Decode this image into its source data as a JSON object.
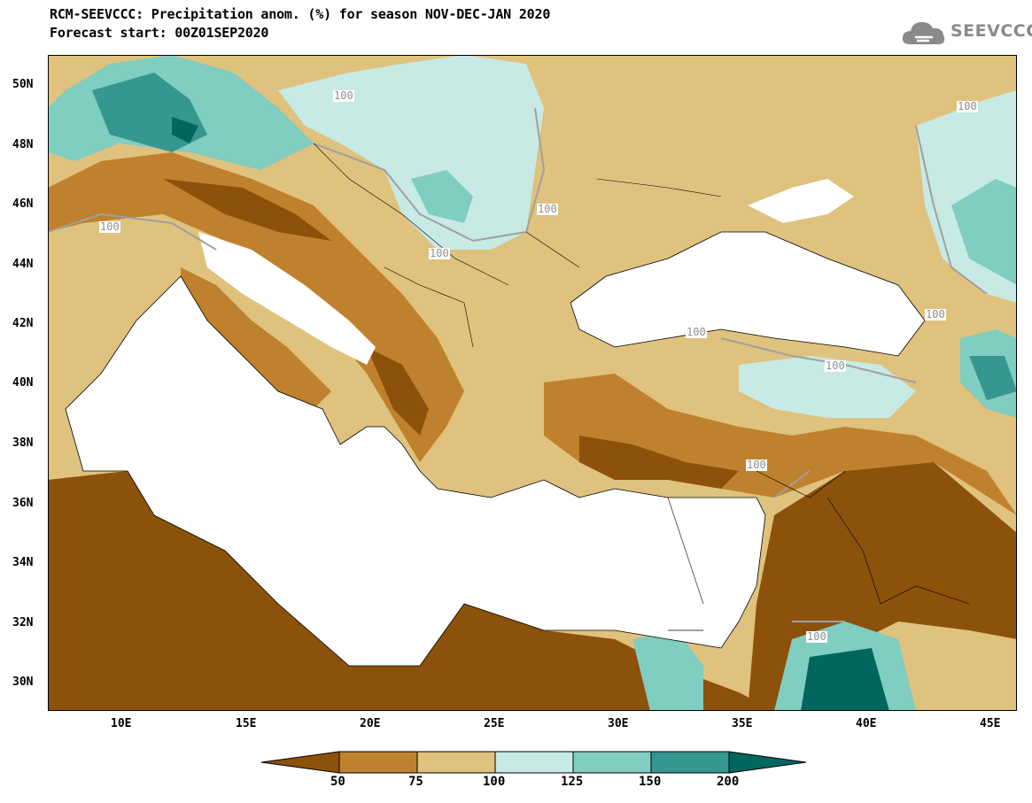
{
  "header": {
    "title_line1": "RCM-SEEVCCC: Precipitation anom. (%) for season NOV-DEC-JAN 2020",
    "title_line2": "Forecast start: 00Z01SEP2020",
    "logo_text": "SEEVCCC",
    "logo_icon": "cloud-icon"
  },
  "map": {
    "lat_labels": [
      "50N",
      "48N",
      "46N",
      "44N",
      "42N",
      "40N",
      "38N",
      "36N",
      "34N",
      "32N",
      "30N"
    ],
    "lon_labels": [
      "10E",
      "15E",
      "20E",
      "25E",
      "30E",
      "35E",
      "40E",
      "45E"
    ],
    "contour_labels": [
      "100",
      "100",
      "100",
      "100",
      "100",
      "100",
      "100",
      "100",
      "100",
      "100"
    ],
    "colors": {
      "sea": "#ffffff",
      "very_dry": "#8c510a",
      "dry": "#bf812d",
      "slightly_dry": "#dfc27d",
      "slightly_wet": "#c7eae5",
      "wet": "#80cdc1",
      "very_wet": "#35978f",
      "extreme_wet": "#01665e",
      "contour_100": "#a0a0a0"
    }
  },
  "colorbar": {
    "labels": [
      "50",
      "75",
      "100",
      "125",
      "150",
      "200"
    ],
    "colors": [
      "#8c510a",
      "#bf812d",
      "#dfc27d",
      "#c7eae5",
      "#80cdc1",
      "#35978f",
      "#01665e"
    ]
  }
}
